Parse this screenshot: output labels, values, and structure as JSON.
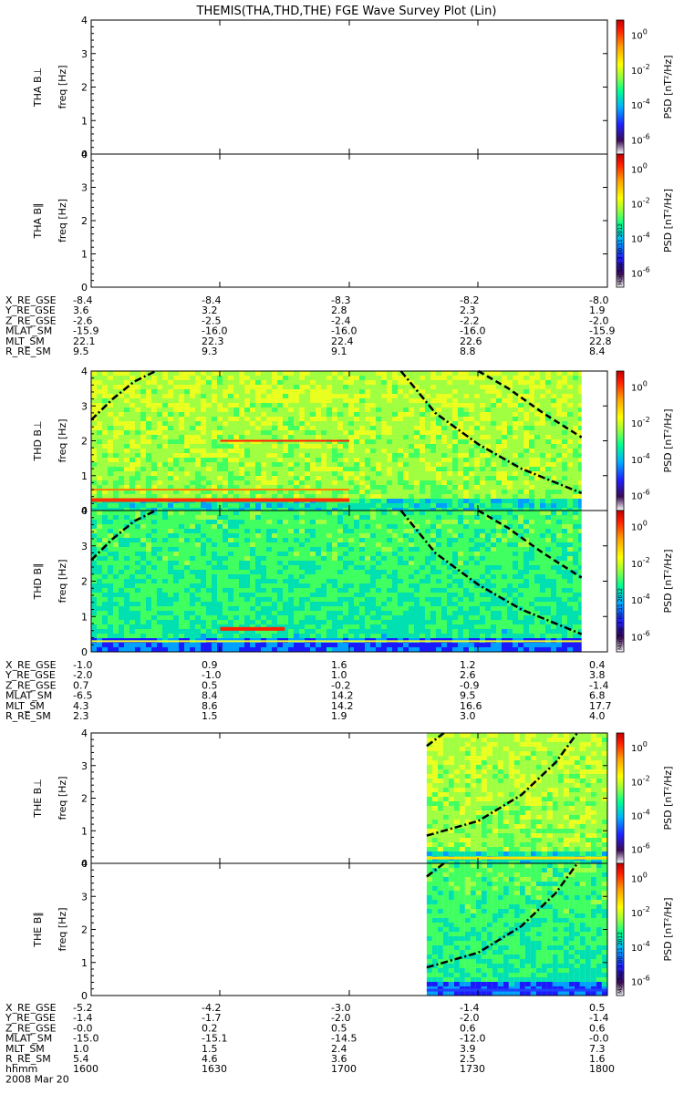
{
  "title": "THEMIS(THA,THD,THE) FGE Wave Survey Plot (Lin)",
  "colorbar": {
    "label_html": "PSD [nT²/Hz]",
    "label": "PSD [nT^2/Hz]",
    "ticks": [
      "10^0",
      "10^-2",
      "10^-4",
      "10^-6"
    ],
    "stamp": "Mon Sep 3 00:11 2012"
  },
  "ephem_labels": [
    "X_RE_GSE",
    "Y_RE_GSE",
    "Z_RE_GSE",
    "MLAT_SM",
    "MLT_SM",
    "R_RE_SM"
  ],
  "time_label": "hhmm",
  "date": "2008 Mar 20",
  "time_ticks": [
    "1600",
    "1630",
    "1700",
    "1730",
    "1800"
  ],
  "chart_data": [
    {
      "type": "heatmap",
      "name": "THA",
      "panels": [
        {
          "label": "THA B⊥",
          "ylabel": "freq [Hz]",
          "has_data": false
        },
        {
          "label": "THA B∥",
          "ylabel": "freq [Hz]",
          "has_data": false
        }
      ],
      "ylim": [
        0,
        4
      ],
      "yticks": [
        "0",
        "1",
        "2",
        "3",
        "4"
      ],
      "ephemeris": [
        [
          "-8.4",
          "-8.4",
          "-8.3",
          "-8.2",
          "-8.0"
        ],
        [
          "3.6",
          "3.2",
          "2.8",
          "2.3",
          "1.9"
        ],
        [
          "-2.6",
          "-2.5",
          "-2.4",
          "-2.2",
          "-2.0"
        ],
        [
          "-15.9",
          "-16.0",
          "-16.0",
          "-16.0",
          "-15.9"
        ],
        [
          "22.1",
          "22.3",
          "22.4",
          "22.6",
          "22.8"
        ],
        [
          "9.5",
          "9.3",
          "9.1",
          "8.8",
          "8.4"
        ]
      ]
    },
    {
      "type": "heatmap",
      "name": "THD",
      "panels": [
        {
          "label": "THD B⊥",
          "ylabel": "freq [Hz]",
          "has_data": true,
          "data_start": 1600,
          "data_end": 1754
        },
        {
          "label": "THD B∥",
          "ylabel": "freq [Hz]",
          "has_data": true,
          "data_start": 1600,
          "data_end": 1754
        }
      ],
      "ylim": [
        0,
        4
      ],
      "yticks": [
        "0",
        "1",
        "2",
        "3",
        "4"
      ],
      "ephemeris": [
        [
          "-1.0",
          "0.9",
          "1.6",
          "1.2",
          "0.4"
        ],
        [
          "-2.0",
          "-1.0",
          "1.0",
          "2.6",
          "3.8"
        ],
        [
          "0.7",
          "0.5",
          "-0.2",
          "-0.9",
          "-1.4"
        ],
        [
          "-6.5",
          "8.4",
          "14.2",
          "9.5",
          "6.8"
        ],
        [
          "4.3",
          "8.6",
          "14.2",
          "16.6",
          "17.7"
        ],
        [
          "2.3",
          "1.5",
          "1.9",
          "3.0",
          "4.0"
        ]
      ]
    },
    {
      "type": "heatmap",
      "name": "THE",
      "panels": [
        {
          "label": "THE B⊥",
          "ylabel": "freq [Hz]",
          "has_data": true,
          "data_start": 1718,
          "data_end": 1800
        },
        {
          "label": "THE B∥",
          "ylabel": "freq [Hz]",
          "has_data": true,
          "data_start": 1718,
          "data_end": 1800
        }
      ],
      "ylim": [
        0,
        4
      ],
      "yticks": [
        "0",
        "1",
        "2",
        "3",
        "4"
      ],
      "ephemeris": [
        [
          "-5.2",
          "-4.2",
          "-3.0",
          "-1.4",
          "0.5"
        ],
        [
          "-1.4",
          "-1.7",
          "-2.0",
          "-2.0",
          "-1.4"
        ],
        [
          "-0.0",
          "0.2",
          "0.5",
          "0.6",
          "0.6"
        ],
        [
          "-15.0",
          "-15.1",
          "-14.5",
          "-12.0",
          "-0.0"
        ],
        [
          "1.0",
          "1.5",
          "2.4",
          "3.9",
          "7.3"
        ],
        [
          "5.4",
          "4.6",
          "3.6",
          "2.5",
          "1.6"
        ]
      ]
    }
  ]
}
